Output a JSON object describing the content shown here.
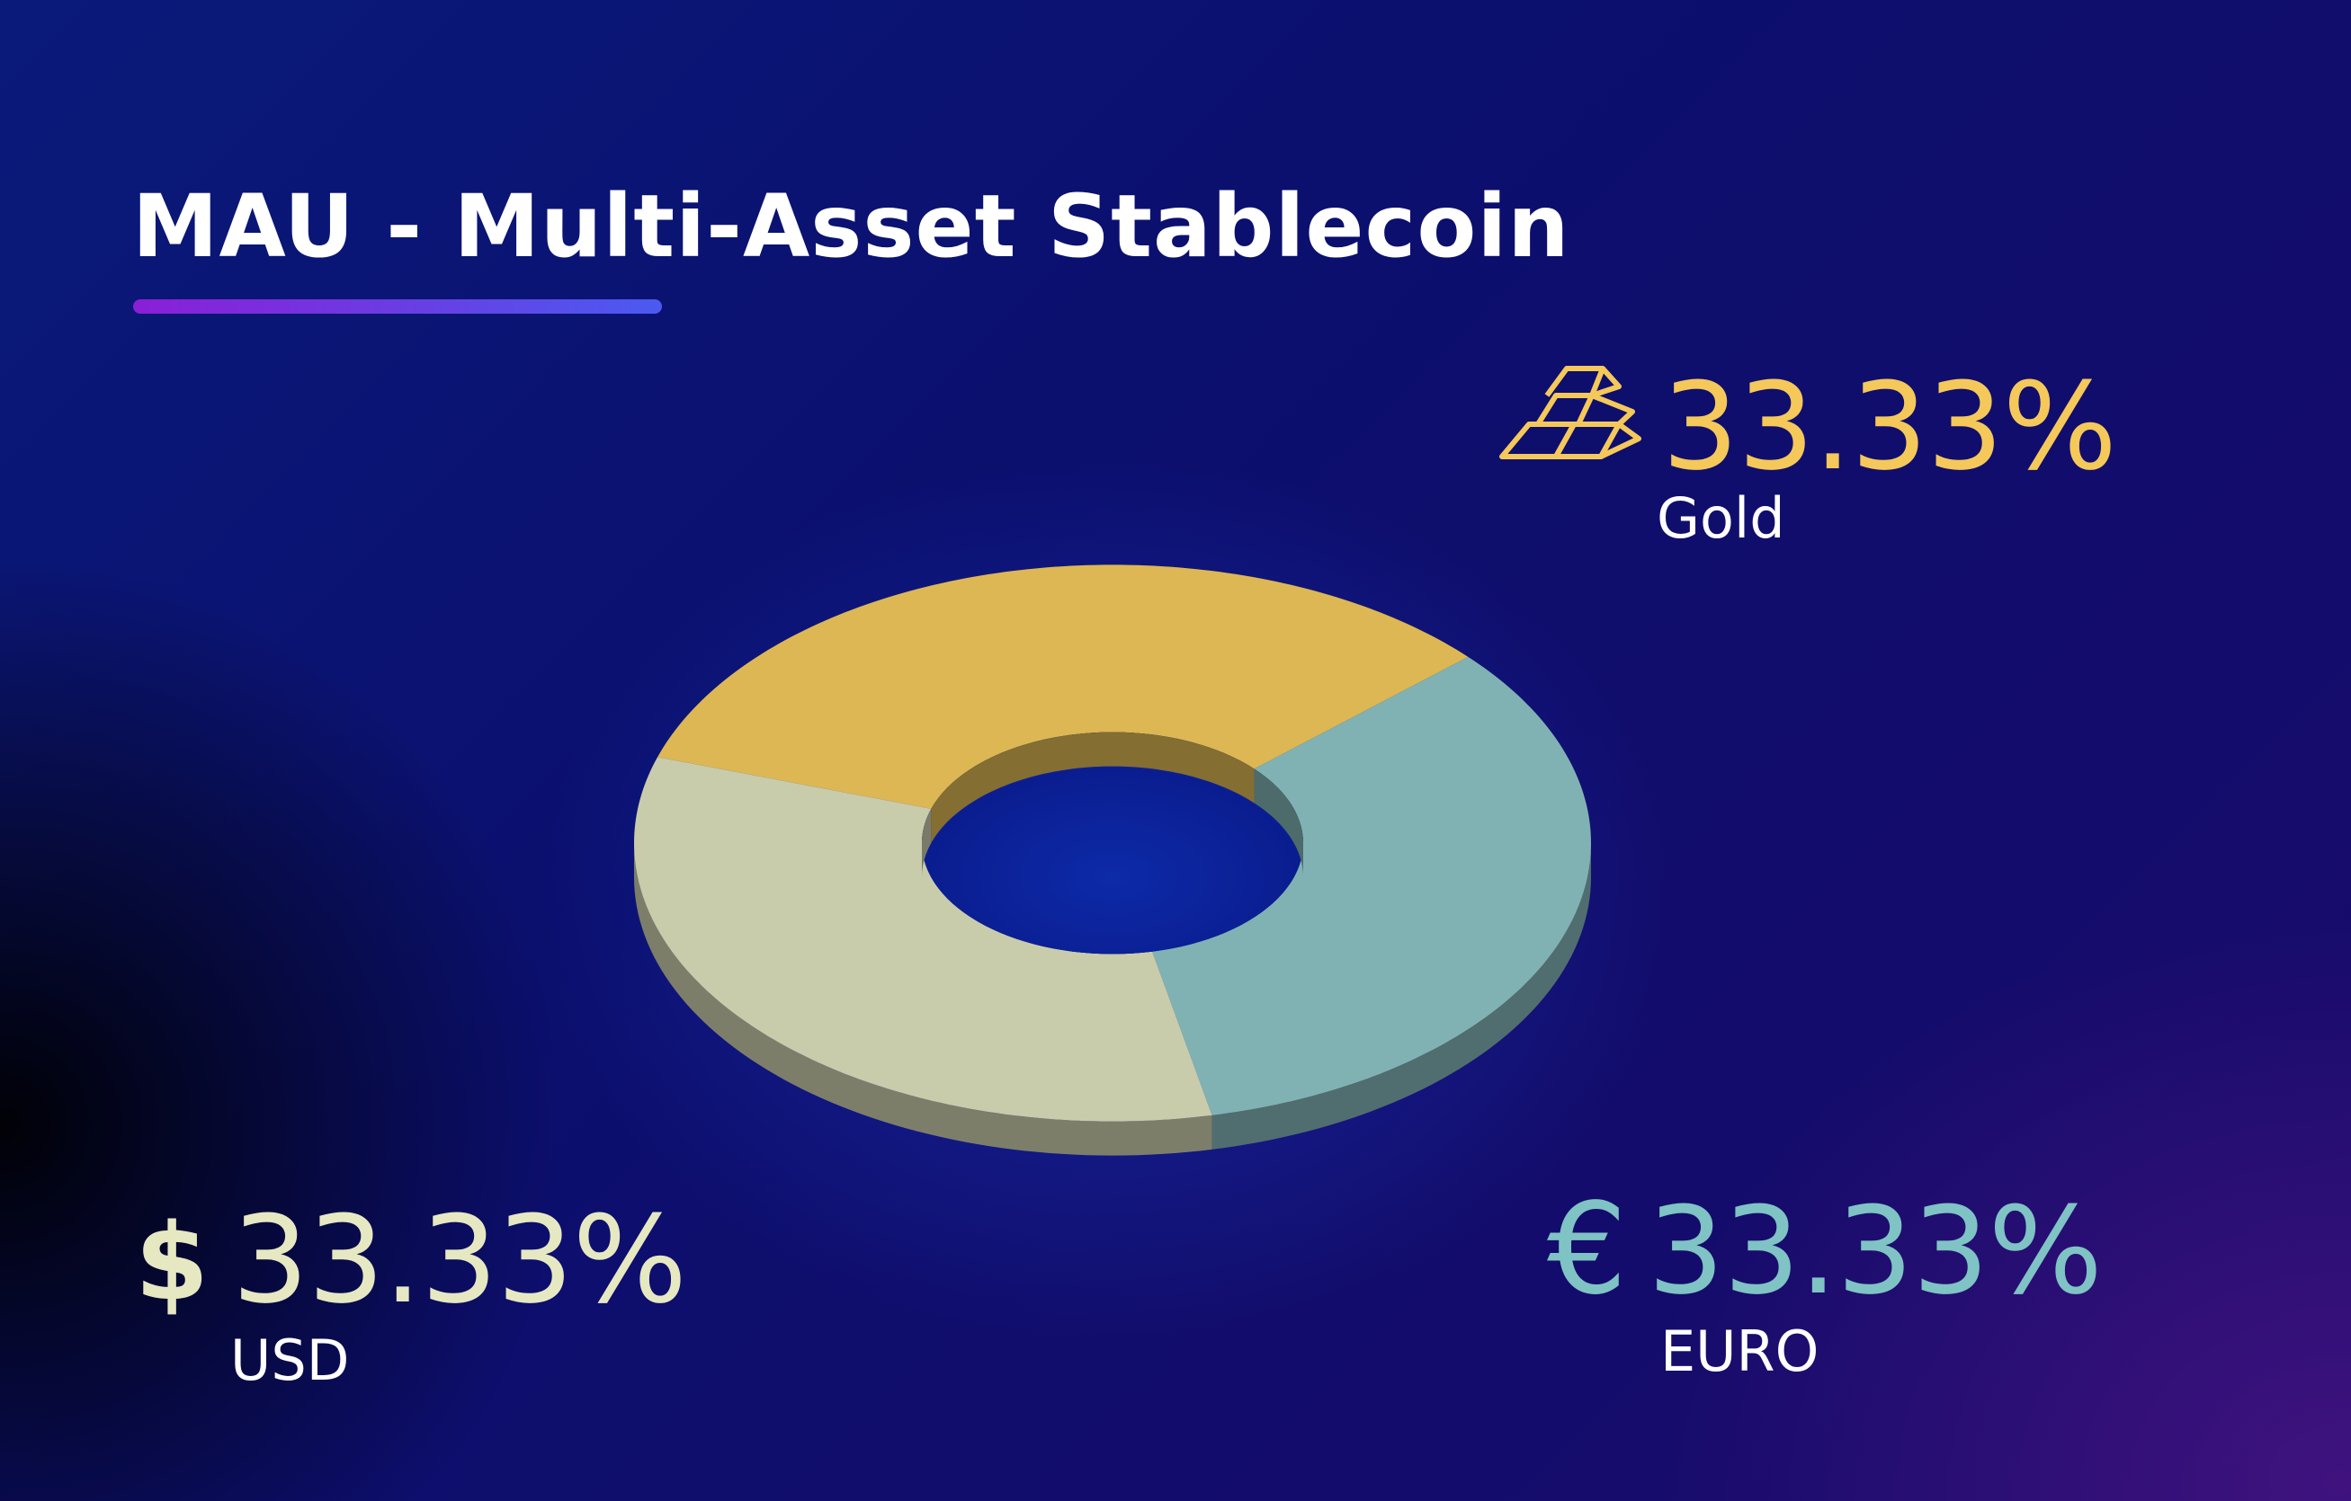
{
  "title": "MAU - Multi-Asset Stablecoin",
  "colors": {
    "gold": "#dcb753",
    "euro": "#81b2b3",
    "usd": "#c9ccab",
    "gold_text": "#f5c85a",
    "euro_text": "#7fc3c4",
    "usd_text": "#e6e8c2"
  },
  "chart_data": {
    "type": "pie",
    "style": "3d-donut",
    "categories": [
      "Gold",
      "EURO",
      "USD"
    ],
    "values": [
      33.33,
      33.33,
      33.33
    ],
    "labels": [
      "33.33%",
      "33.33%",
      "33.33%"
    ],
    "icons": [
      "gold-bars-icon",
      "euro-sign-icon",
      "dollar-sign-icon"
    ],
    "symbols": [
      "",
      "€",
      "$"
    ]
  }
}
